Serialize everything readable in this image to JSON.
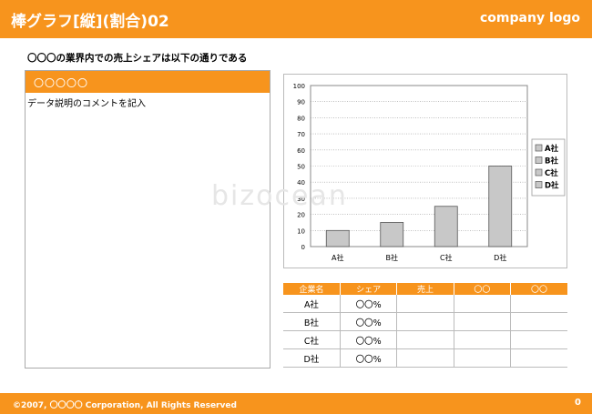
{
  "header": {
    "title": "棒グラフ[縦](割合)02",
    "logo": "company logo"
  },
  "intro_text": "〇〇〇の業界内での売上シェアは以下の通りである",
  "left_panel": {
    "bar_label": "〇〇〇〇〇",
    "description": "データ説明のコメントを記入"
  },
  "chart_data": {
    "type": "bar",
    "categories": [
      "A社",
      "B社",
      "C社",
      "D社"
    ],
    "values": [
      10,
      15,
      25,
      50
    ],
    "ylim": [
      0,
      100
    ],
    "yticks": [
      "0",
      "10",
      "20",
      "30",
      "40",
      "50",
      "60",
      "70",
      "80",
      "90",
      "100"
    ],
    "legend": [
      "A社",
      "B社",
      "C社",
      "D社"
    ],
    "legend_position": "right",
    "grid": true,
    "bar_color": "#c8c8c8"
  },
  "table": {
    "headers": [
      "企業名",
      "シェア",
      "売上",
      "〇〇",
      "〇〇"
    ],
    "rows": [
      [
        "A社",
        "〇〇%",
        "",
        "",
        ""
      ],
      [
        "B社",
        "〇〇%",
        "",
        "",
        ""
      ],
      [
        "C社",
        "〇〇%",
        "",
        "",
        ""
      ],
      [
        "D社",
        "〇〇%",
        "",
        "",
        ""
      ]
    ]
  },
  "footer": {
    "copyright": "©2007, 〇〇〇〇 Corporation, All Rights Reserved",
    "page": "0"
  },
  "watermark": "bizocean",
  "colors": {
    "accent": "#f7941d",
    "bar": "#c8c8c8"
  }
}
